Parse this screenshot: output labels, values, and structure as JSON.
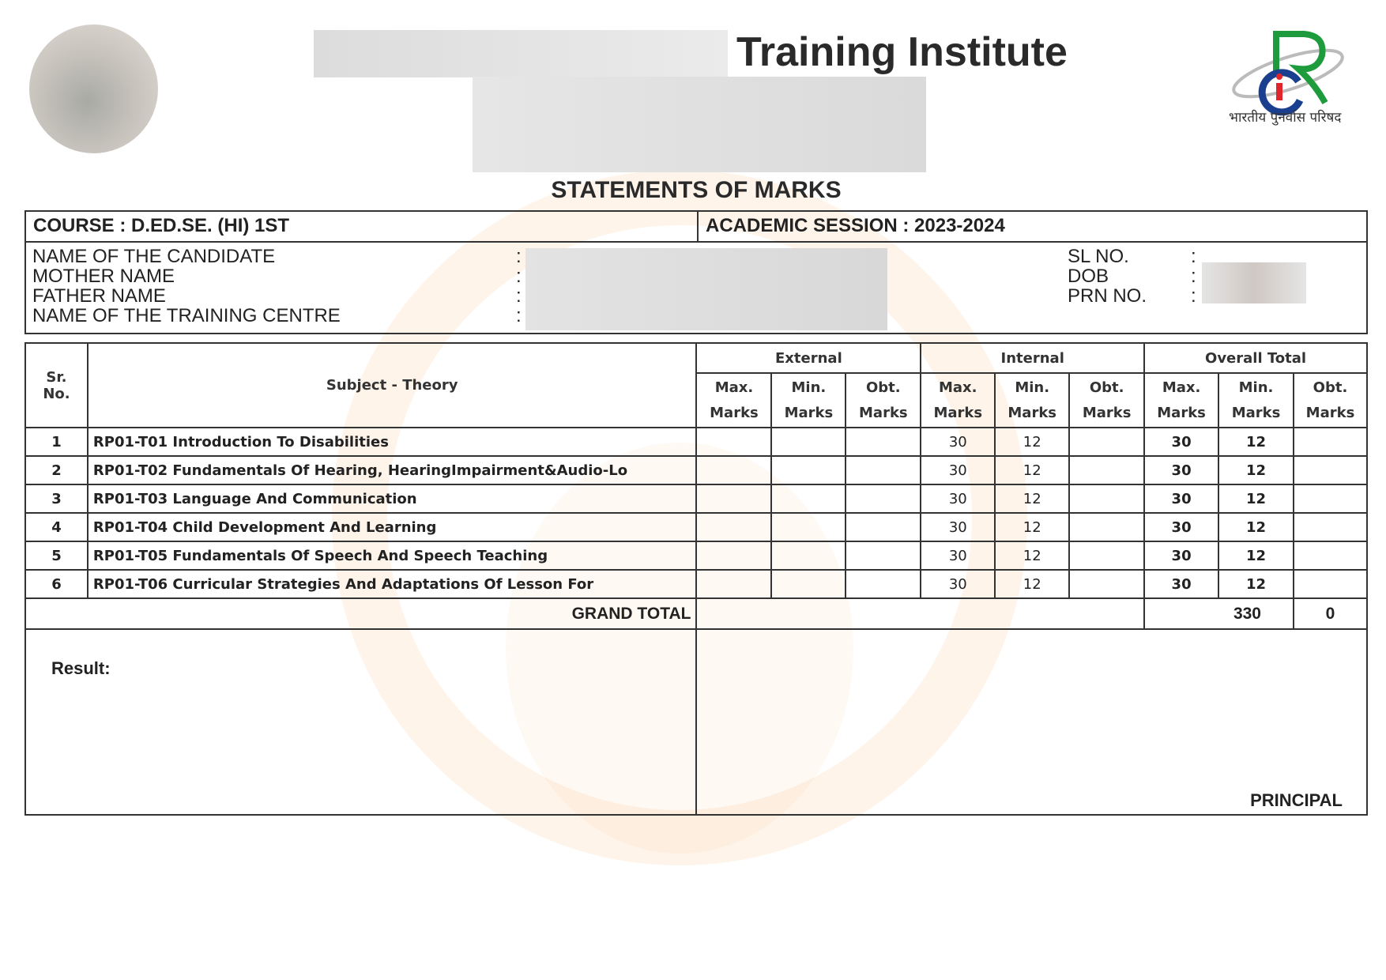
{
  "header": {
    "title": "Training Institute",
    "logo_text": "भारतीय पुनर्वास परिषद",
    "logo_colors": {
      "r": "#1e9b3c",
      "c": "#1b3f8f",
      "i": "#e0262c"
    }
  },
  "statement_title": "STATEMENTS OF MARKS",
  "info": {
    "course": "COURSE : D.ED.SE. (HI) 1ST",
    "session": "ACADEMIC SESSION : 2023-2024",
    "left_labels": [
      "NAME OF THE CANDIDATE",
      "MOTHER NAME",
      "FATHER NAME",
      "NAME OF THE TRAINING CENTRE"
    ],
    "right_labels": [
      "SL NO.",
      "DOB",
      "PRN NO."
    ],
    "colon": ":"
  },
  "table": {
    "headers": {
      "sr": "Sr. No.",
      "subject": "Subject - Theory",
      "external": "External",
      "internal": "Internal",
      "overall": "Overall Total",
      "max": "Max.",
      "min": "Min.",
      "obt": "Obt.",
      "marks": "Marks"
    },
    "rows": [
      {
        "sr": "1",
        "subject": "RP01-T01 Introduction To Disabilities",
        "int_max": "30",
        "int_min": "12",
        "tot_max": "30",
        "tot_min": "12"
      },
      {
        "sr": "2",
        "subject": "RP01-T02 Fundamentals Of Hearing, HearingImpairment&Audio-Lo",
        "int_max": "30",
        "int_min": "12",
        "tot_max": "30",
        "tot_min": "12"
      },
      {
        "sr": "3",
        "subject": "RP01-T03 Language And Communication",
        "int_max": "30",
        "int_min": "12",
        "tot_max": "30",
        "tot_min": "12"
      },
      {
        "sr": "4",
        "subject": "RP01-T04 Child Development And Learning",
        "int_max": "30",
        "int_min": "12",
        "tot_max": "30",
        "tot_min": "12"
      },
      {
        "sr": "5",
        "subject": "RP01-T05 Fundamentals Of Speech And Speech Teaching",
        "int_max": "30",
        "int_min": "12",
        "tot_max": "30",
        "tot_min": "12"
      },
      {
        "sr": "6",
        "subject": "RP01-T06 Curricular Strategies And Adaptations Of Lesson For",
        "int_max": "30",
        "int_min": "12",
        "tot_max": "30",
        "tot_min": "12"
      }
    ],
    "grand_total_label": "GRAND TOTAL",
    "grand_total_max": "330",
    "grand_total_obt": "0"
  },
  "footer": {
    "result_label": "Result:",
    "principal": "PRINCIPAL"
  }
}
